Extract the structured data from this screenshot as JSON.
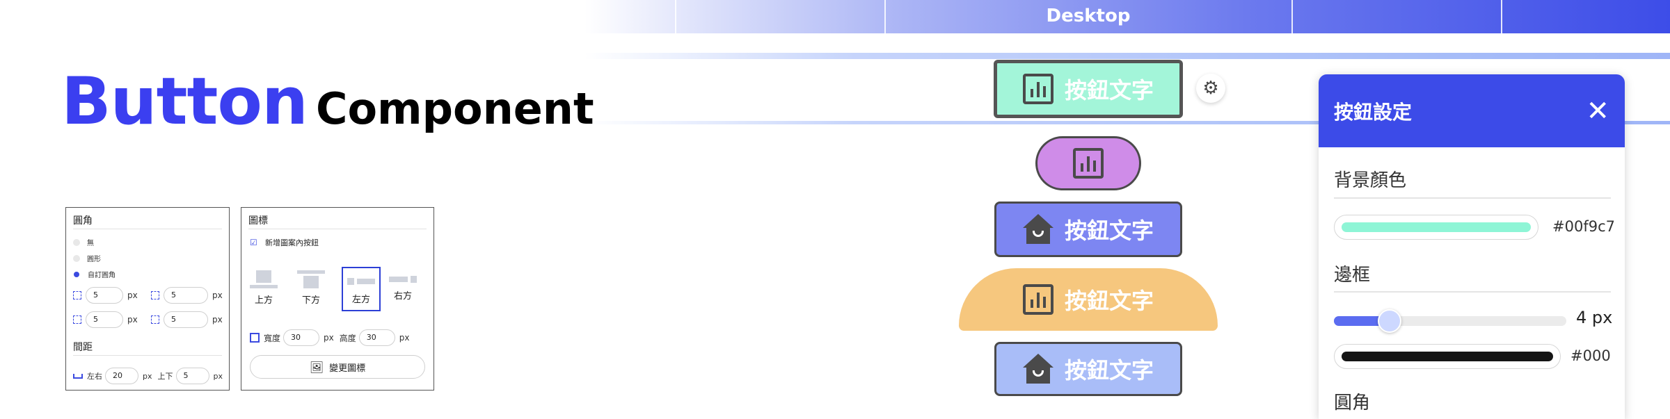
{
  "banner": {
    "label": "Desktop"
  },
  "title": {
    "main": "Button",
    "sub": "Component"
  },
  "corner_panel": {
    "title": "圓角",
    "options": [
      {
        "label": "無",
        "selected": false
      },
      {
        "label": "圓形",
        "selected": false
      },
      {
        "label": "自訂圓角",
        "selected": true
      }
    ],
    "corners": [
      {
        "value": "5",
        "unit": "px"
      },
      {
        "value": "5",
        "unit": "px"
      },
      {
        "value": "5",
        "unit": "px"
      },
      {
        "value": "5",
        "unit": "px"
      }
    ],
    "spacing_title": "間距",
    "spacing": {
      "lr_label": "左右",
      "lr_value": "20",
      "lr_unit": "px",
      "tb_label": "上下",
      "tb_value": "5",
      "tb_unit": "px"
    }
  },
  "icon_panel": {
    "title": "圖標",
    "checkbox_label": "新增圖案內按鈕",
    "checkbox_checked": true,
    "positions": [
      {
        "label": "上方",
        "selected": false
      },
      {
        "label": "下方",
        "selected": false
      },
      {
        "label": "左方",
        "selected": true
      },
      {
        "label": "右方",
        "selected": false
      }
    ],
    "width_label": "寬度",
    "width_value": "30",
    "width_unit": "px",
    "height_label": "高度",
    "height_value": "30",
    "height_unit": "px",
    "change_button": "變更圖標"
  },
  "preview": {
    "button_text": "按鈕文字",
    "buttons": [
      {
        "label": "按鈕文字",
        "icon": "chart-icon",
        "bg": "#a3f5d9",
        "border": "#555555"
      },
      {
        "label": "",
        "icon": "chart-icon",
        "bg": "#cf8ce8",
        "border": "#4a4a4a"
      },
      {
        "label": "按鈕文字",
        "icon": "home-icon",
        "bg": "#7d86f2",
        "border": "#4a4a4a"
      },
      {
        "label": "按鈕文字",
        "icon": "chart-icon",
        "bg": "#f6c77e",
        "border": "none"
      },
      {
        "label": "按鈕文字",
        "icon": "home-icon",
        "bg": "#a9bdf8",
        "border": "#4a4a4a"
      }
    ]
  },
  "settings": {
    "title": "按鈕設定",
    "close_icon": "close-icon",
    "bg_color_label": "背景顏色",
    "bg_color_hex": "#00f9c7",
    "bg_color_swatch": "#8ef5d6",
    "border_label": "邊框",
    "border_width": "4 px",
    "border_level": 0.19,
    "border_color_hex": "#000",
    "radius_label": "圓角"
  }
}
